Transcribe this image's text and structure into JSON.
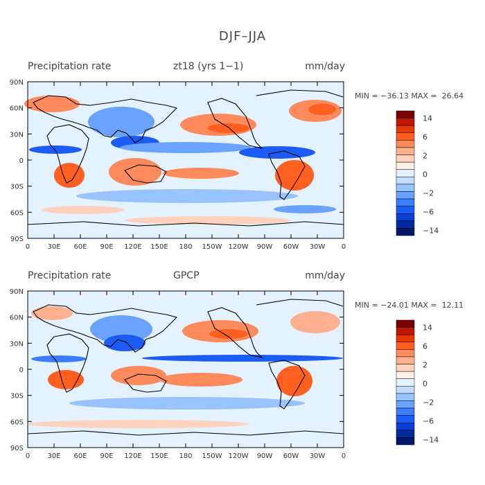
{
  "figure": {
    "title": "DJF–JJA"
  },
  "x_ticks": [
    "0",
    "30E",
    "60E",
    "90E",
    "120E",
    "150E",
    "180",
    "150W",
    "120W",
    "90W",
    "60W",
    "30W",
    "0"
  ],
  "y_ticks": [
    "90N",
    "60N",
    "30N",
    "0",
    "30S",
    "60S",
    "90S"
  ],
  "colorbar_labels": [
    "14",
    "6",
    "2",
    "0",
    "−2",
    "−6",
    "−14"
  ],
  "colors": {
    "levels": [
      "#7a0000",
      "#c01800",
      "#e83800",
      "#ff5f1f",
      "#ff8a5c",
      "#ffb08f",
      "#ffd2bd",
      "#fff1e8",
      "#e4f1ff",
      "#c2ddff",
      "#98c3ff",
      "#6aa3ff",
      "#3c7dff",
      "#1b5cf5",
      "#0b3fd6",
      "#002a9e",
      "#00166b"
    ]
  },
  "panels": [
    {
      "left_title": "Precipitation rate",
      "center_title": "zt18 (yrs 1−1)",
      "units": "mm/day",
      "minmax_text": "MIN = −36.13 MAX =  26.64"
    },
    {
      "left_title": "Precipitation rate",
      "center_title": "GPCP",
      "units": "mm/day",
      "minmax_text": "MIN = −24.01 MAX =  12.11"
    }
  ],
  "chart_data": [
    {
      "type": "heatmap",
      "title": "DJF–JJA",
      "subtitle": "Precipitation rate  zt18 (yrs 1−1)",
      "units": "mm/day",
      "xlim": [
        0,
        360
      ],
      "ylim": [
        -90,
        90
      ],
      "x_ticks": [
        "0",
        "30E",
        "60E",
        "90E",
        "120E",
        "150E",
        "180",
        "150W",
        "120W",
        "90W",
        "60W",
        "30W",
        "0"
      ],
      "y_ticks": [
        "90N",
        "60N",
        "30N",
        "0",
        "30S",
        "60S",
        "90S"
      ],
      "colorbar_levels": [
        14,
        6,
        2,
        0,
        -2,
        -6,
        -14
      ],
      "min": -36.13,
      "max": 26.64
    },
    {
      "type": "heatmap",
      "title": "DJF–JJA",
      "subtitle": "Precipitation rate  GPCP",
      "units": "mm/day",
      "xlim": [
        0,
        360
      ],
      "ylim": [
        -90,
        90
      ],
      "x_ticks": [
        "0",
        "30E",
        "60E",
        "90E",
        "120E",
        "150E",
        "180",
        "150W",
        "120W",
        "90W",
        "60W",
        "30W",
        "0"
      ],
      "y_ticks": [
        "90N",
        "60N",
        "30N",
        "0",
        "30S",
        "60S",
        "90S"
      ],
      "colorbar_levels": [
        14,
        6,
        2,
        0,
        -2,
        -6,
        -14
      ],
      "min": -24.01,
      "max": 12.11
    }
  ]
}
